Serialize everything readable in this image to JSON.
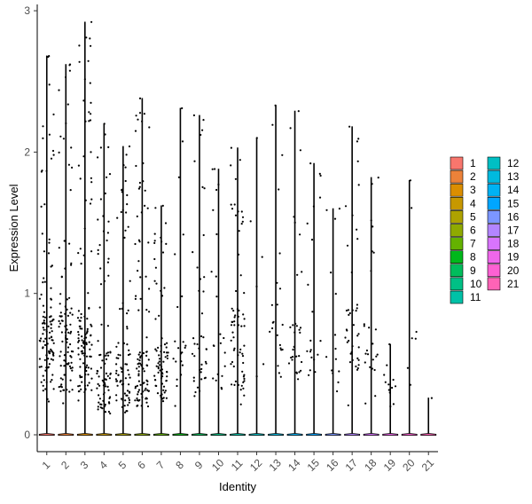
{
  "chart_data": {
    "type": "scatter",
    "subtype": "violin-jitter",
    "title": "",
    "xlabel": "Identity",
    "ylabel": "Expression Level",
    "categories": [
      "1",
      "2",
      "3",
      "4",
      "5",
      "6",
      "7",
      "8",
      "9",
      "10",
      "11",
      "12",
      "13",
      "14",
      "15",
      "16",
      "17",
      "18",
      "19",
      "20",
      "21"
    ],
    "ylim": [
      -0.15,
      3.05
    ],
    "yticks": [
      0,
      1,
      2,
      3
    ],
    "max_values": [
      2.68,
      2.62,
      2.92,
      2.2,
      2.04,
      2.38,
      1.62,
      2.31,
      2.26,
      1.88,
      2.03,
      2.1,
      2.33,
      2.29,
      1.92,
      1.6,
      2.18,
      1.82,
      0.64,
      1.8,
      0.26
    ],
    "dense_ranges": [
      [
        0.3,
        0.85
      ],
      [
        0.3,
        0.9
      ],
      [
        0.3,
        0.9
      ],
      [
        0.15,
        0.6
      ],
      [
        0.15,
        0.65
      ],
      [
        0.2,
        0.6
      ],
      [
        0.25,
        0.65
      ],
      [
        0.3,
        0.7
      ],
      [
        0.3,
        0.7
      ],
      [
        0.3,
        0.7
      ],
      [
        0.3,
        0.9
      ],
      [
        0.5,
        0.5
      ],
      [
        0.4,
        0.8
      ],
      [
        0.4,
        0.8
      ],
      [
        0.4,
        0.7
      ],
      [
        0.3,
        0.6
      ],
      [
        0.4,
        0.9
      ],
      [
        0.4,
        0.8
      ],
      [
        0.2,
        0.5
      ],
      [
        0.6,
        0.8
      ],
      [
        0.25,
        0.25
      ]
    ],
    "n_nonzero": [
      110,
      95,
      115,
      85,
      80,
      95,
      75,
      22,
      40,
      22,
      65,
      6,
      22,
      30,
      20,
      14,
      40,
      24,
      12,
      7,
      1
    ],
    "legend": {
      "title": "",
      "placement": "right",
      "entries": [
        "1",
        "2",
        "3",
        "4",
        "5",
        "6",
        "7",
        "8",
        "9",
        "10",
        "11",
        "12",
        "13",
        "14",
        "15",
        "16",
        "17",
        "18",
        "19",
        "20",
        "21"
      ],
      "colors": [
        "#F8766D",
        "#EC8239",
        "#DB8E00",
        "#C79800",
        "#AEA200",
        "#8FAA00",
        "#64B200",
        "#00B81B",
        "#00BD5C",
        "#00C085",
        "#00C1A7",
        "#00BFC4",
        "#00BADE",
        "#00B2F3",
        "#00A6FF",
        "#7C96FF",
        "#B385FF",
        "#D874FD",
        "#EF67EB",
        "#FD61D3",
        "#FF63B6"
      ]
    },
    "grid": false
  }
}
